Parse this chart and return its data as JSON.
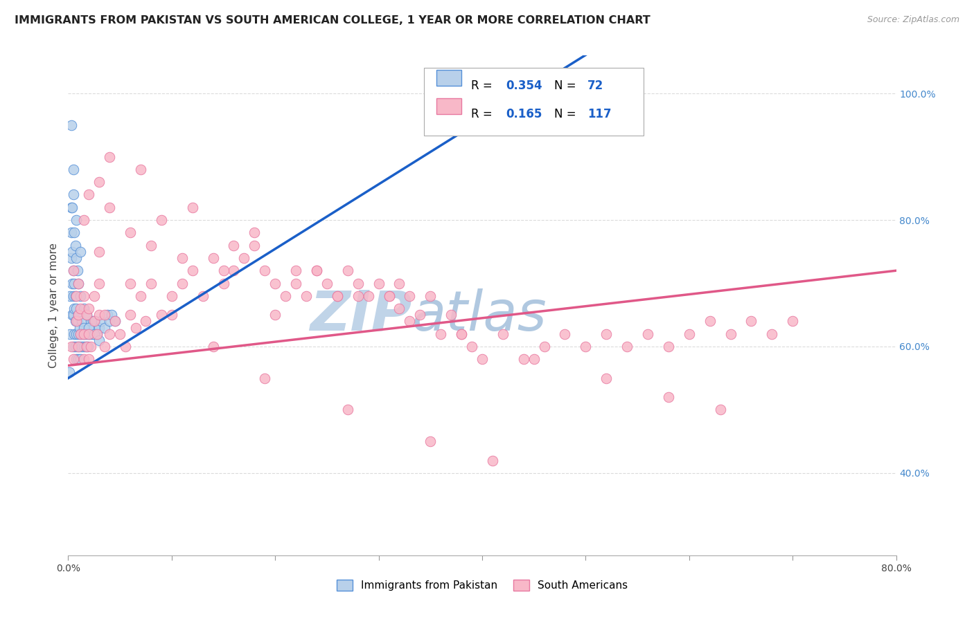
{
  "title": "IMMIGRANTS FROM PAKISTAN VS SOUTH AMERICAN COLLEGE, 1 YEAR OR MORE CORRELATION CHART",
  "source": "Source: ZipAtlas.com",
  "ylabel": "College, 1 year or more",
  "xmin": 0.0,
  "xmax": 80.0,
  "ymin": 27.0,
  "ymax": 106.0,
  "pakistan_R": 0.354,
  "pakistan_N": 72,
  "southam_R": 0.165,
  "southam_N": 117,
  "pakistan_color": "#b8d0ea",
  "pakistan_edge_color": "#5590d8",
  "pakistan_line_color": "#1a5fc8",
  "southam_color": "#f8b8c8",
  "southam_edge_color": "#e878a0",
  "southam_line_color": "#e05888",
  "grid_color": "#cccccc",
  "watermark_zip_color": "#c0d4e8",
  "watermark_atlas_color": "#b0c8e0",
  "right_axis_color": "#4488cc",
  "pakistan_x": [
    0.1,
    0.2,
    0.2,
    0.3,
    0.3,
    0.3,
    0.4,
    0.4,
    0.4,
    0.5,
    0.5,
    0.5,
    0.5,
    0.6,
    0.6,
    0.6,
    0.7,
    0.7,
    0.7,
    0.8,
    0.8,
    0.8,
    0.9,
    0.9,
    1.0,
    1.0,
    1.0,
    1.1,
    1.1,
    1.2,
    1.2,
    1.3,
    1.3,
    1.4,
    1.5,
    1.5,
    1.6,
    1.7,
    1.8,
    1.9,
    2.0,
    2.1,
    2.2,
    2.3,
    2.4,
    2.5,
    2.6,
    2.8,
    3.0,
    3.2,
    3.5,
    3.8,
    4.0,
    4.2,
    4.5,
    0.4,
    0.5,
    0.6,
    0.7,
    0.8,
    0.9,
    1.0,
    1.2,
    1.5,
    1.8,
    2.0,
    2.5,
    3.0,
    0.3,
    0.5,
    0.8,
    1.2
  ],
  "pakistan_y": [
    56,
    62,
    68,
    74,
    78,
    82,
    65,
    70,
    75,
    60,
    65,
    68,
    72,
    62,
    66,
    70,
    60,
    64,
    68,
    58,
    62,
    66,
    60,
    64,
    58,
    62,
    65,
    60,
    63,
    58,
    62,
    60,
    64,
    62,
    60,
    63,
    62,
    60,
    62,
    60,
    62,
    62,
    64,
    62,
    64,
    63,
    64,
    62,
    63,
    64,
    63,
    65,
    64,
    65,
    64,
    82,
    84,
    78,
    76,
    74,
    72,
    70,
    68,
    66,
    65,
    63,
    62,
    61,
    95,
    88,
    80,
    75
  ],
  "southam_x": [
    0.3,
    0.5,
    0.5,
    0.8,
    0.8,
    1.0,
    1.0,
    1.0,
    1.2,
    1.2,
    1.5,
    1.5,
    1.5,
    1.8,
    1.8,
    2.0,
    2.0,
    2.0,
    2.2,
    2.5,
    2.5,
    2.8,
    3.0,
    3.0,
    3.5,
    3.5,
    4.0,
    4.5,
    5.0,
    5.5,
    6.0,
    6.5,
    7.0,
    7.5,
    8.0,
    9.0,
    10.0,
    11.0,
    12.0,
    13.0,
    14.0,
    15.0,
    16.0,
    17.0,
    18.0,
    19.0,
    20.0,
    21.0,
    22.0,
    23.0,
    24.0,
    25.0,
    26.0,
    27.0,
    28.0,
    29.0,
    30.0,
    31.0,
    32.0,
    33.0,
    34.0,
    35.0,
    36.0,
    37.0,
    38.0,
    39.0,
    40.0,
    42.0,
    44.0,
    46.0,
    48.0,
    50.0,
    52.0,
    54.0,
    56.0,
    58.0,
    60.0,
    62.0,
    64.0,
    66.0,
    68.0,
    70.0,
    1.5,
    2.0,
    3.0,
    4.0,
    6.0,
    8.0,
    11.0,
    15.0,
    20.0,
    26.0,
    32.0,
    38.0,
    45.0,
    52.0,
    58.0,
    63.0,
    4.0,
    7.0,
    12.0,
    18.0,
    24.0,
    31.0,
    9.0,
    16.0,
    22.0,
    28.0,
    33.0,
    3.0,
    6.0,
    10.0,
    14.0,
    19.0,
    27.0,
    35.0,
    41.0
  ],
  "southam_y": [
    60,
    58,
    72,
    64,
    68,
    60,
    65,
    70,
    62,
    66,
    58,
    62,
    68,
    60,
    65,
    58,
    62,
    66,
    60,
    64,
    68,
    62,
    65,
    70,
    60,
    65,
    62,
    64,
    62,
    60,
    65,
    63,
    68,
    64,
    70,
    65,
    68,
    70,
    72,
    68,
    74,
    70,
    72,
    74,
    76,
    72,
    65,
    68,
    70,
    68,
    72,
    70,
    68,
    72,
    70,
    68,
    70,
    68,
    70,
    68,
    65,
    68,
    62,
    65,
    62,
    60,
    58,
    62,
    58,
    60,
    62,
    60,
    62,
    60,
    62,
    60,
    62,
    64,
    62,
    64,
    62,
    64,
    80,
    84,
    86,
    82,
    78,
    76,
    74,
    72,
    70,
    68,
    66,
    62,
    58,
    55,
    52,
    50,
    90,
    88,
    82,
    78,
    72,
    68,
    80,
    76,
    72,
    68,
    64,
    75,
    70,
    65,
    60,
    55,
    50,
    45,
    42
  ]
}
